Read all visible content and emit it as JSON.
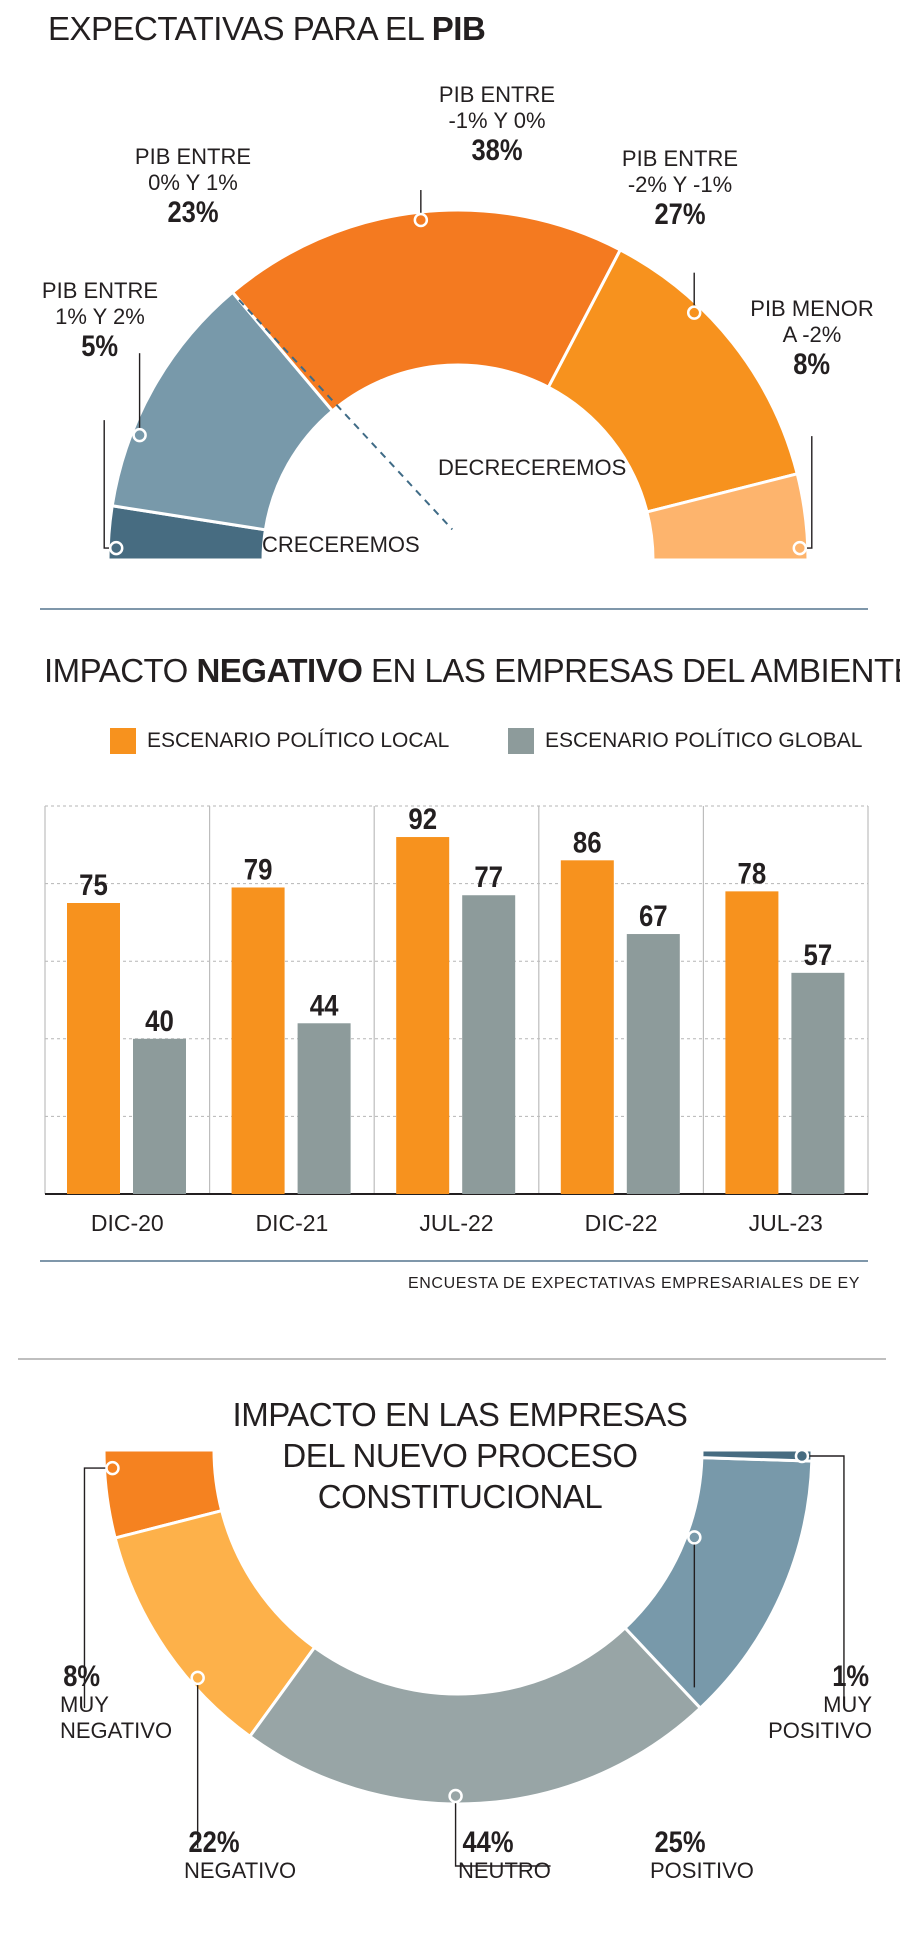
{
  "gauge": {
    "title_plain": "EXPECTATIVAS PARA EL ",
    "title_bold": "PIB",
    "zone_left": "CRECEREMOS",
    "zone_right": "DECRECEREMOS",
    "colors": [
      "#476c81",
      "#7899aa",
      "#f47a20",
      "#f7921e",
      "#fdb46d"
    ],
    "segments": [
      {
        "line1": "PIB ENTRE",
        "line2": "1% Y 2%",
        "pct": "5%"
      },
      {
        "line1": "PIB ENTRE",
        "line2": "0% Y 1%",
        "pct": "23%"
      },
      {
        "line1": "PIB ENTRE",
        "line2": "-1% Y 0%",
        "pct": "38%"
      },
      {
        "line1": "PIB ENTRE",
        "line2": "-2% Y -1%",
        "pct": "27%"
      },
      {
        "line1": "PIB MENOR",
        "line2": "A -2%",
        "pct": "8%"
      }
    ]
  },
  "bars": {
    "title_plain_1": "IMPACTO ",
    "title_bold": "NEGATIVO",
    "title_plain_2": " EN LAS EMPRESAS DEL AMBIENTE",
    "legend_local": "ESCENARIO POLÍTICO LOCAL",
    "legend_global": "ESCENARIO POLÍTICO GLOBAL",
    "color_local": "#f7921e",
    "color_global": "#8d9b9b",
    "source": "ENCUESTA DE EXPECTATIVAS EMPRESARIALES DE EY"
  },
  "chart_data": [
    {
      "type": "pie",
      "title": "EXPECTATIVAS PARA EL PIB",
      "categories": [
        "PIB ENTRE 1% Y 2%",
        "PIB ENTRE 0% Y 1%",
        "PIB ENTRE -1% Y 0%",
        "PIB ENTRE -2% Y -1%",
        "PIB MENOR A -2%"
      ],
      "values": [
        5,
        23,
        38,
        27,
        8
      ]
    },
    {
      "type": "bar",
      "title": "IMPACTO NEGATIVO EN LAS EMPRESAS DEL AMBIENTE",
      "categories": [
        "DIC-20",
        "DIC-21",
        "JUL-22",
        "DIC-22",
        "JUL-23"
      ],
      "series": [
        {
          "name": "ESCENARIO POLÍTICO LOCAL",
          "values": [
            75,
            79,
            92,
            86,
            78
          ]
        },
        {
          "name": "ESCENARIO POLÍTICO GLOBAL",
          "values": [
            40,
            44,
            77,
            67,
            57
          ]
        }
      ],
      "ylim": [
        0,
        100
      ],
      "grid": true
    },
    {
      "type": "pie",
      "title": "IMPACTO EN LAS EMPRESAS DEL NUEVO PROCESO CONSTITUCIONAL",
      "categories": [
        "MUY NEGATIVO",
        "NEGATIVO",
        "NEUTRO",
        "POSITIVO",
        "MUY POSITIVO"
      ],
      "values": [
        8,
        22,
        44,
        25,
        1
      ]
    }
  ],
  "impact": {
    "title_lines": [
      "IMPACTO EN LAS EMPRESAS",
      "DEL NUEVO PROCESO",
      "CONSTITUCIONAL"
    ],
    "colors": [
      "#f58220",
      "#fdb14a",
      "#98a5a6",
      "#7899aa",
      "#476c81"
    ],
    "labels": [
      {
        "pct": "8%",
        "line1": "MUY",
        "line2": "NEGATIVO"
      },
      {
        "pct": "22%",
        "line1": "NEGATIVO",
        "line2": ""
      },
      {
        "pct": "44%",
        "line1": "NEUTRO",
        "line2": ""
      },
      {
        "pct": "25%",
        "line1": "POSITIVO",
        "line2": ""
      },
      {
        "pct": "1%",
        "line1": "MUY",
        "line2": "POSITIVO"
      }
    ]
  }
}
